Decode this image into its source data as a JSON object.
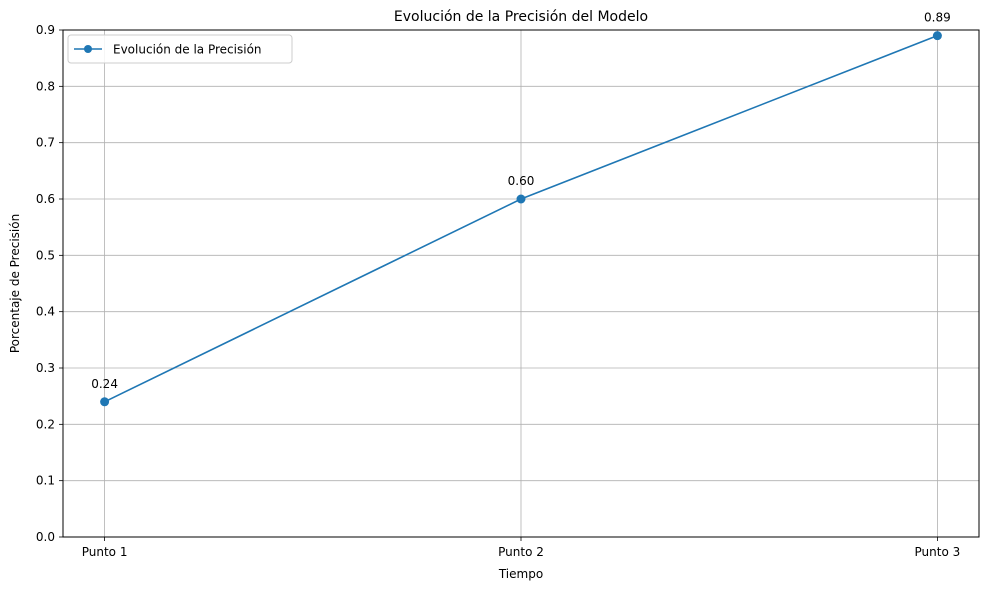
{
  "chart_data": {
    "type": "line",
    "title": "Evolución de la Precisión del Modelo",
    "xlabel": "Tiempo",
    "ylabel": "Porcentaje de Precisión",
    "categories": [
      "Punto 1",
      "Punto 2",
      "Punto 3"
    ],
    "series": [
      {
        "name": "Evolución de la Precisión",
        "values": [
          0.24,
          0.6,
          0.89
        ],
        "data_labels": [
          "0.24",
          "0.60",
          "0.89"
        ],
        "color": "#1f77b4"
      }
    ],
    "ylim": [
      0,
      0.9
    ],
    "yticks": [
      "0.0",
      "0.1",
      "0.2",
      "0.3",
      "0.4",
      "0.5",
      "0.6",
      "0.7",
      "0.8",
      "0.9"
    ],
    "grid": true,
    "legend_position": "top-left"
  }
}
